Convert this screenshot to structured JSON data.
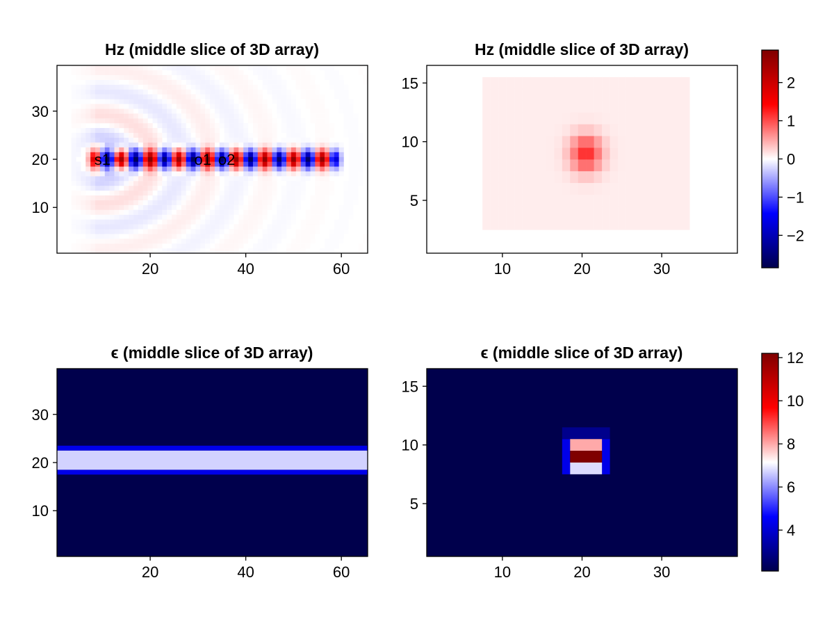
{
  "colormap": {
    "name": "seismic",
    "stops": [
      [
        0.0,
        "#00004c"
      ],
      [
        0.25,
        "#0000ff"
      ],
      [
        0.5,
        "#ffffff"
      ],
      [
        0.75,
        "#ff0000"
      ],
      [
        1.0,
        "#7f0000"
      ]
    ]
  },
  "colorbars": [
    {
      "limits": [
        -2.85,
        2.85
      ],
      "ticks": [
        -2,
        -1,
        0,
        1,
        2
      ],
      "tick_labels": [
        "−2",
        "−1",
        "0",
        "1",
        "2"
      ]
    },
    {
      "limits": [
        2.1,
        12.2
      ],
      "ticks": [
        4,
        6,
        8,
        10,
        12
      ],
      "tick_labels": [
        "4",
        "6",
        "8",
        "10",
        "12"
      ]
    }
  ],
  "chart_data": [
    {
      "type": "heatmap",
      "title": "Hz (middle slice of 3D array)",
      "field": "hz_xy",
      "xlim": [
        0.5,
        65.5
      ],
      "ylim": [
        0.5,
        39.5
      ],
      "xticks": [
        20,
        40,
        60
      ],
      "yticks": [
        10,
        20,
        30
      ],
      "colorbar": 0,
      "grid": false,
      "annotations": [
        {
          "text": "s1",
          "x": 10,
          "y": 20
        },
        {
          "text": "o1",
          "x": 31,
          "y": 20
        },
        {
          "text": "o2",
          "x": 36,
          "y": 20
        }
      ]
    },
    {
      "type": "heatmap",
      "title": "Hz (middle slice of 3D array)",
      "field": "hz_yz",
      "xlim": [
        0.5,
        39.5
      ],
      "ylim": [
        0.5,
        16.5
      ],
      "xticks": [
        10,
        20,
        30
      ],
      "yticks": [
        5,
        10,
        15
      ],
      "colorbar": 0,
      "grid": false
    },
    {
      "type": "heatmap",
      "title": "ϵ (middle slice of 3D array)",
      "field": "eps_xy",
      "xlim": [
        0.5,
        65.5
      ],
      "ylim": [
        0.5,
        39.5
      ],
      "xticks": [
        20,
        40,
        60
      ],
      "yticks": [
        10,
        20,
        30
      ],
      "colorbar": 1,
      "grid": false,
      "bands": [
        {
          "rows": [
            18,
            18
          ],
          "value": 4.3
        },
        {
          "rows": [
            19,
            22
          ],
          "value": 6.7
        },
        {
          "rows": [
            23,
            23
          ],
          "value": 4.3
        }
      ],
      "background": 2.1
    },
    {
      "type": "heatmap",
      "title": "ϵ (middle slice of 3D array)",
      "field": "eps_yz",
      "xlim": [
        0.5,
        39.5
      ],
      "ylim": [
        0.5,
        16.5
      ],
      "xticks": [
        10,
        20,
        30
      ],
      "yticks": [
        5,
        10,
        15
      ],
      "colorbar": 1,
      "grid": false,
      "background": 2.1,
      "cells": [
        {
          "x": [
            18,
            18
          ],
          "y": [
            8,
            10
          ],
          "value": 4.3
        },
        {
          "x": [
            23,
            23
          ],
          "y": [
            8,
            10
          ],
          "value": 4.3
        },
        {
          "x": [
            18,
            23
          ],
          "y": [
            11,
            11
          ],
          "value": 3.0
        },
        {
          "x": [
            19,
            22
          ],
          "y": [
            10,
            10
          ],
          "value": 8.0
        },
        {
          "x": [
            19,
            22
          ],
          "y": [
            9,
            9
          ],
          "value": 12.2
        },
        {
          "x": [
            19,
            22
          ],
          "y": [
            8,
            8
          ],
          "value": 6.8
        }
      ]
    }
  ]
}
